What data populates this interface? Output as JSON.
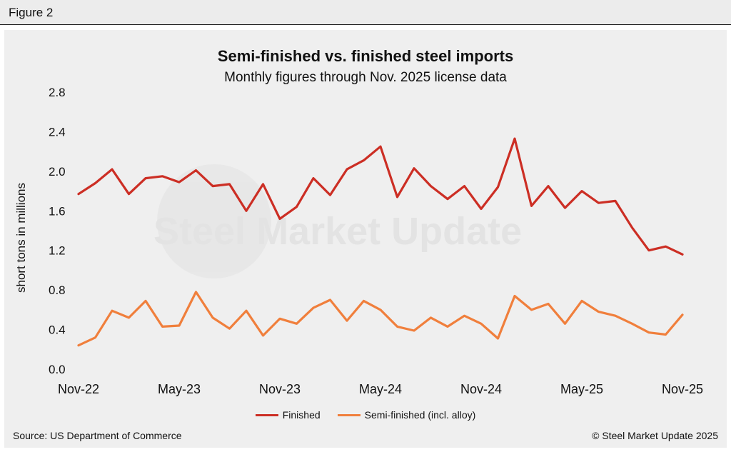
{
  "figure_label": "Figure 2",
  "source": "Source: US Department of Commerce",
  "copyright": "© Steel Market Update 2025",
  "watermark": "Steel Market Update",
  "colors": {
    "finished": "#cc2e24",
    "semi": "#f07f3c",
    "panel": "#efefef"
  },
  "chart_data": {
    "type": "line",
    "title": "Semi-finished vs. finished steel imports",
    "subtitle": "Monthly figures through Nov. 2025 license data",
    "xlabel": "",
    "ylabel": "short tons in millions",
    "ylim": [
      0,
      2.8
    ],
    "yticks": [
      "0.0",
      "0.4",
      "0.8",
      "1.2",
      "1.6",
      "2.0",
      "2.4",
      "2.8"
    ],
    "x": [
      "Nov-22",
      "Dec-22",
      "Jan-23",
      "Feb-23",
      "Mar-23",
      "Apr-23",
      "May-23",
      "Jun-23",
      "Jul-23",
      "Aug-23",
      "Sep-23",
      "Oct-23",
      "Nov-23",
      "Dec-23",
      "Jan-24",
      "Feb-24",
      "Mar-24",
      "Apr-24",
      "May-24",
      "Jun-24",
      "Jul-24",
      "Aug-24",
      "Sep-24",
      "Oct-24",
      "Nov-24",
      "Dec-24",
      "Jan-25",
      "Feb-25",
      "Mar-25",
      "Apr-25",
      "May-25",
      "Jun-25",
      "Jul-25",
      "Aug-25",
      "Sep-25",
      "Oct-25",
      "Nov-25"
    ],
    "xtick_labels": [
      "Nov-22",
      "May-23",
      "Nov-23",
      "May-24",
      "Nov-24",
      "May-25",
      "Nov-25"
    ],
    "xtick_index": [
      0,
      6,
      12,
      18,
      24,
      30,
      36
    ],
    "series": [
      {
        "name": "Finished",
        "values": [
          1.77,
          1.88,
          2.02,
          1.77,
          1.93,
          1.95,
          1.89,
          2.01,
          1.85,
          1.87,
          1.6,
          1.87,
          1.52,
          1.64,
          1.93,
          1.76,
          2.02,
          2.11,
          2.25,
          1.74,
          2.03,
          1.85,
          1.72,
          1.85,
          1.62,
          1.84,
          2.33,
          1.65,
          1.85,
          1.63,
          1.8,
          1.68,
          1.7,
          1.43,
          1.2,
          1.24,
          1.16
        ]
      },
      {
        "name": "Semi-finished (incl. alloy)",
        "values": [
          0.24,
          0.32,
          0.59,
          0.52,
          0.69,
          0.43,
          0.44,
          0.78,
          0.52,
          0.41,
          0.59,
          0.34,
          0.51,
          0.46,
          0.62,
          0.7,
          0.49,
          0.69,
          0.6,
          0.43,
          0.39,
          0.52,
          0.43,
          0.54,
          0.46,
          0.31,
          0.74,
          0.6,
          0.66,
          0.46,
          0.69,
          0.58,
          0.54,
          0.46,
          0.37,
          0.35,
          0.55
        ]
      }
    ]
  }
}
